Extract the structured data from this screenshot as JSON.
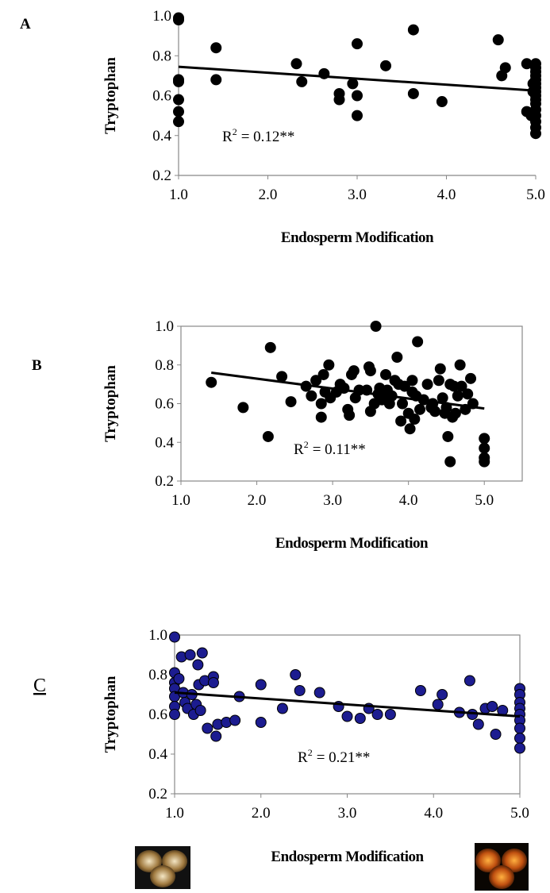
{
  "chart_data": [
    {
      "type": "scatter",
      "panel_label": "A",
      "panel_label_underline": false,
      "frame": false,
      "y_label": "Tryptophan",
      "x_label": "Endosperm Modification",
      "annotation": {
        "base": "R",
        "superscript": "2",
        "rest": "= 0.12**"
      },
      "color": "#000000",
      "edge_color": "#000000",
      "xlim": [
        1,
        5
      ],
      "ylim": [
        0.2,
        1
      ],
      "xticks": [
        {
          "value": 1,
          "label": "1.0"
        },
        {
          "value": 2,
          "label": "2.0"
        },
        {
          "value": 3,
          "label": "3.0"
        },
        {
          "value": 4,
          "label": "4.0"
        },
        {
          "value": 5,
          "label": "5.0"
        }
      ],
      "yticks": [
        0.2,
        0.4,
        0.6,
        0.8,
        {
          "value": 1,
          "label": "1.0"
        }
      ],
      "x": [
        1,
        1,
        1,
        1,
        1,
        1,
        1,
        1.42,
        1.42,
        2.32,
        2.38,
        2.63,
        2.8,
        2.8,
        2.95,
        3,
        3,
        3,
        3.32,
        3.63,
        3.63,
        3.95,
        4.58,
        4.62,
        4.66,
        4.9,
        4.9,
        4.95,
        5,
        5,
        5,
        5,
        5,
        5,
        5,
        5,
        5,
        5,
        5,
        5,
        5,
        5,
        5,
        5,
        4.97,
        4.97
      ],
      "y": [
        0.99,
        0.98,
        0.68,
        0.67,
        0.58,
        0.52,
        0.47,
        0.84,
        0.68,
        0.76,
        0.67,
        0.71,
        0.61,
        0.58,
        0.66,
        0.86,
        0.6,
        0.5,
        0.75,
        0.93,
        0.61,
        0.57,
        0.88,
        0.7,
        0.74,
        0.76,
        0.52,
        0.5,
        0.76,
        0.74,
        0.72,
        0.7,
        0.68,
        0.66,
        0.64,
        0.62,
        0.6,
        0.58,
        0.56,
        0.53,
        0.5,
        0.47,
        0.44,
        0.41,
        0.66,
        0.62
      ],
      "trendline": {
        "x": [
          1,
          5
        ],
        "y": [
          0.745,
          0.625
        ]
      }
    },
    {
      "type": "scatter",
      "panel_label": "B",
      "panel_label_underline": false,
      "frame": true,
      "y_label": "Tryptophan",
      "x_label": "Endosperm Modification",
      "annotation": {
        "base": "R",
        "superscript": "2",
        "rest": "= 0.11**"
      },
      "color": "#000000",
      "edge_color": "#000000",
      "xlim": [
        1,
        5.5
      ],
      "ylim": [
        0.2,
        1
      ],
      "xticks": [
        {
          "value": 1,
          "label": "1.0"
        },
        {
          "value": 2,
          "label": "2.0"
        },
        {
          "value": 3,
          "label": "3.0"
        },
        {
          "value": 4,
          "label": "4.0"
        },
        {
          "value": 5,
          "label": "5.0"
        }
      ],
      "yticks": [
        0.2,
        0.4,
        0.6,
        0.8,
        {
          "value": 1,
          "label": "1.0"
        }
      ],
      "x": [
        1.4,
        1.82,
        2.15,
        2.18,
        2.33,
        2.45,
        2.65,
        2.72,
        2.78,
        2.85,
        2.85,
        2.88,
        2.9,
        2.95,
        2.97,
        3.05,
        3.1,
        3.15,
        3.2,
        3.22,
        3.25,
        3.28,
        3.3,
        3.35,
        3.45,
        3.48,
        3.5,
        3.5,
        3.55,
        3.57,
        3.6,
        3.62,
        3.65,
        3.7,
        3.72,
        3.75,
        3.78,
        3.82,
        3.85,
        3.87,
        3.9,
        3.92,
        3.95,
        4,
        4.02,
        4.05,
        4.05,
        4.08,
        4.1,
        4.12,
        4.15,
        4.2,
        4.25,
        4.3,
        4.32,
        4.35,
        4.4,
        4.42,
        4.45,
        4.48,
        4.5,
        4.52,
        4.55,
        4.55,
        4.58,
        4.6,
        4.62,
        4.65,
        4.68,
        4.7,
        4.75,
        4.78,
        4.82,
        4.85,
        5,
        5,
        5,
        5
      ],
      "y": [
        0.71,
        0.58,
        0.43,
        0.89,
        0.74,
        0.61,
        0.69,
        0.64,
        0.72,
        0.53,
        0.6,
        0.75,
        0.66,
        0.8,
        0.63,
        0.66,
        0.7,
        0.68,
        0.57,
        0.54,
        0.75,
        0.77,
        0.63,
        0.67,
        0.67,
        0.79,
        0.56,
        0.77,
        0.6,
        1,
        0.65,
        0.68,
        0.62,
        0.75,
        0.67,
        0.6,
        0.64,
        0.72,
        0.84,
        0.7,
        0.51,
        0.6,
        0.69,
        0.55,
        0.47,
        0.66,
        0.72,
        0.52,
        0.64,
        0.92,
        0.57,
        0.62,
        0.7,
        0.58,
        0.6,
        0.56,
        0.72,
        0.78,
        0.63,
        0.55,
        0.58,
        0.43,
        0.3,
        0.7,
        0.53,
        0.69,
        0.55,
        0.64,
        0.8,
        0.69,
        0.57,
        0.65,
        0.73,
        0.6,
        0.42,
        0.37,
        0.32,
        0.3
      ],
      "trendline": {
        "x": [
          1.4,
          5
        ],
        "y": [
          0.76,
          0.575
        ]
      }
    },
    {
      "type": "scatter",
      "panel_label": "C",
      "panel_label_underline": true,
      "frame": true,
      "y_label": "Tryptophan",
      "x_label": "Endosperm Modification",
      "annotation": {
        "base": "R",
        "superscript": "2",
        "rest": "= 0.21**"
      },
      "color": "#1c1c90",
      "edge_color": "#000000",
      "xlim": [
        1,
        5
      ],
      "ylim": [
        0.2,
        1
      ],
      "xticks": [
        {
          "value": 1,
          "label": "1.0"
        },
        {
          "value": 2,
          "label": "2.0"
        },
        {
          "value": 3,
          "label": "3.0"
        },
        {
          "value": 4,
          "label": "4.0"
        },
        {
          "value": 5,
          "label": "5.0"
        }
      ],
      "yticks": [
        0.2,
        0.4,
        0.6,
        0.8,
        {
          "value": 1,
          "label": "1.0"
        }
      ],
      "x": [
        1,
        1,
        1,
        1,
        1,
        1,
        1,
        1.05,
        1.08,
        1.1,
        1.12,
        1.15,
        1.18,
        1.2,
        1.22,
        1.25,
        1.27,
        1.28,
        1.3,
        1.32,
        1.35,
        1.38,
        1.45,
        1.45,
        1.48,
        1.5,
        1.6,
        1.7,
        1.75,
        2,
        2,
        2.25,
        2.4,
        2.45,
        2.68,
        2.9,
        3,
        3.15,
        3.25,
        3.35,
        3.5,
        3.85,
        4.05,
        4.1,
        4.3,
        4.42,
        4.45,
        4.52,
        4.6,
        4.68,
        4.72,
        4.8,
        5,
        5,
        5,
        5,
        5,
        5,
        5,
        5,
        5
      ],
      "y": [
        0.99,
        0.81,
        0.76,
        0.73,
        0.69,
        0.64,
        0.6,
        0.78,
        0.89,
        0.71,
        0.66,
        0.63,
        0.9,
        0.7,
        0.6,
        0.65,
        0.85,
        0.75,
        0.62,
        0.91,
        0.77,
        0.53,
        0.79,
        0.76,
        0.49,
        0.55,
        0.56,
        0.57,
        0.69,
        0.75,
        0.56,
        0.63,
        0.8,
        0.72,
        0.71,
        0.64,
        0.59,
        0.58,
        0.63,
        0.6,
        0.6,
        0.72,
        0.65,
        0.7,
        0.61,
        0.77,
        0.6,
        0.55,
        0.63,
        0.64,
        0.5,
        0.62,
        0.73,
        0.7,
        0.66,
        0.63,
        0.6,
        0.57,
        0.53,
        0.48,
        0.43
      ],
      "trendline": {
        "x": [
          1,
          5
        ],
        "y": [
          0.71,
          0.59
        ]
      }
    }
  ]
}
